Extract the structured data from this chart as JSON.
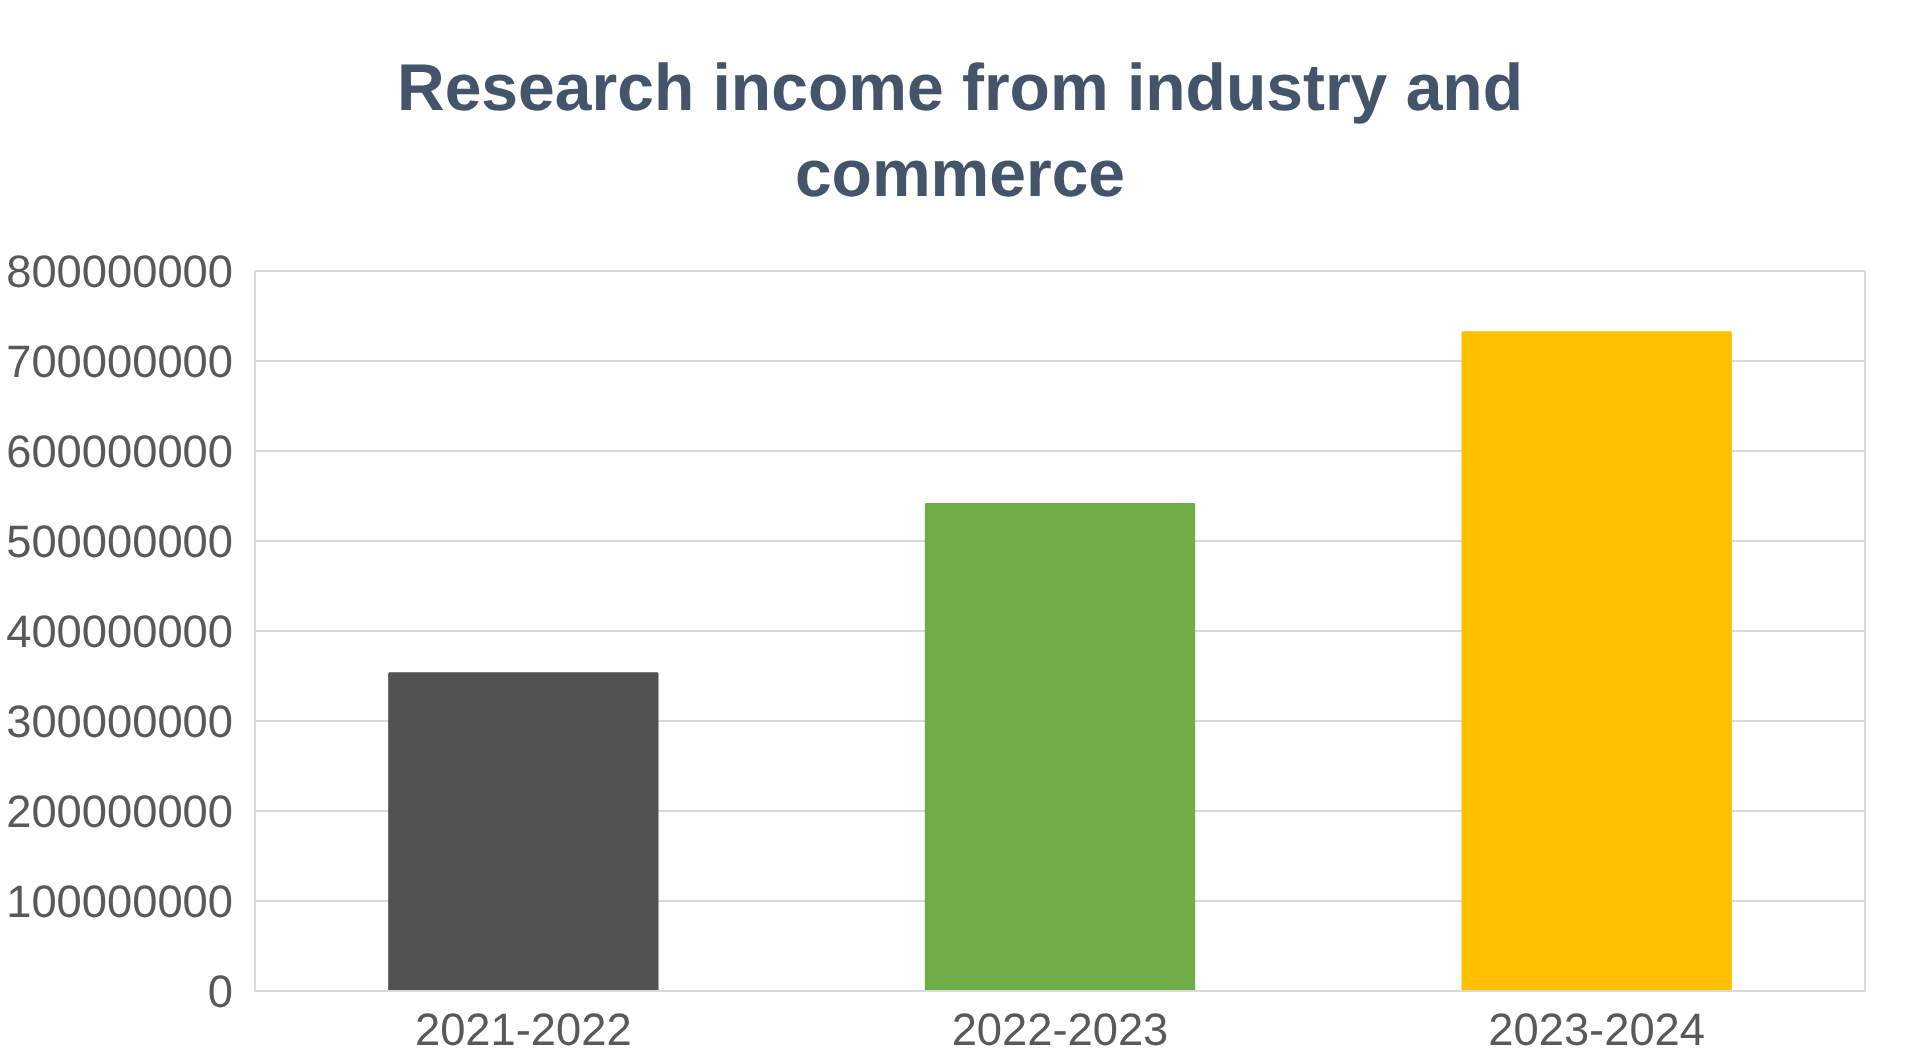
{
  "chart_data": {
    "type": "bar",
    "title": "Research income from industry and commerce",
    "categories": [
      "2021-2022",
      "2022-2023",
      "2023-2024"
    ],
    "values": [
      353000000,
      541000000,
      732000000
    ],
    "colors": [
      "#525252",
      "#70ad47",
      "#ffc000"
    ],
    "ylim": [
      0,
      800000000
    ],
    "yticks": [
      0,
      100000000,
      200000000,
      300000000,
      400000000,
      500000000,
      600000000,
      700000000,
      800000000
    ],
    "grid": "y"
  }
}
